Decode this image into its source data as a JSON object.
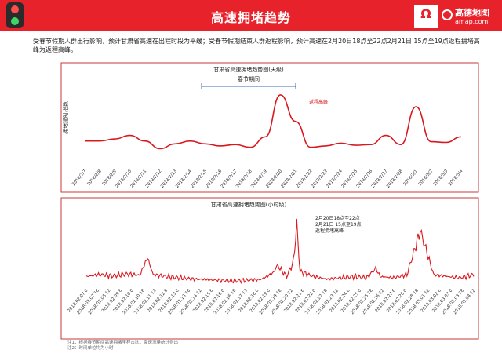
{
  "header": {
    "title": "高速拥堵趋势",
    "brand_name": "高德地图",
    "brand_url": "amap.com"
  },
  "summary": "受春节假期人群出行影响，预计甘肃省高速在出程时段为平缓；受春节假期结束人群返程影响，预计高速在2月20日18点至22点2月21日 15点至19点返程拥堵高峰为返程高峰。",
  "colors": {
    "accent": "#e8222a",
    "line": "#d9181e",
    "frame": "#c43a3a"
  },
  "chart_data": [
    {
      "type": "line",
      "title": "甘肃省高速拥堵趋势图(天级)",
      "ylabel": "拥堵延时指数",
      "categories": [
        "2018/2/7",
        "2018/2/8",
        "2018/2/9",
        "2018/2/10",
        "2018/2/11",
        "2018/2/12",
        "2018/2/13",
        "2018/2/14",
        "2018/2/15",
        "2018/2/16",
        "2018/2/17",
        "2018/2/18",
        "2018/2/19",
        "2018/2/20",
        "2018/2/21",
        "2018/2/22",
        "2018/2/23",
        "2018/2/24",
        "2018/2/25",
        "2018/2/26",
        "2018/2/27",
        "2018/2/28",
        "2018/3/1",
        "2018/3/2",
        "2018/3/3",
        "2018/3/4"
      ],
      "values": [
        0.34,
        0.34,
        0.37,
        0.42,
        0.34,
        0.23,
        0.3,
        0.34,
        0.3,
        0.27,
        0.29,
        0.25,
        0.4,
        1.0,
        0.62,
        0.25,
        0.27,
        0.31,
        0.28,
        0.29,
        0.42,
        0.29,
        0.83,
        0.33,
        0.32,
        0.4
      ],
      "ylim": [
        0,
        1.1
      ],
      "grid": false,
      "annotations": {
        "peak_label": "返程高峰",
        "holiday_label": "春节期间",
        "holiday_range": [
          "2018/2/15",
          "2018/2/21"
        ]
      }
    },
    {
      "type": "line",
      "title": "甘肃省高速拥堵趋势图(小时级)",
      "x_tick_labels": [
        "2018.02.07 0",
        "2018.02.07 18",
        "2018.02.08 12",
        "2018.02.09 6",
        "2018.02.10 0",
        "2018.02.10 18",
        "2018.02.11 12",
        "2018.02.12 6",
        "2018.02.13 0",
        "2018.02.13 18",
        "2018.02.14 12",
        "2018.02.15 6",
        "2018.02.16 0",
        "2018.02.16 18",
        "2018.02.17 12",
        "2018.02.18 6",
        "2018.02.19 0",
        "2018.02.19 18",
        "2018.02.20 12",
        "2018.02.21 6",
        "2018.02.22 0",
        "2018.02.22 18",
        "2018.02.23 12",
        "2018.02.24 6",
        "2018.02.25 0",
        "2018.02.25 18",
        "2018.02.26 12",
        "2018.02.27 6",
        "2018.02.28 0",
        "2018.02.28 18",
        "2018.03.01 12",
        "2018.03.02 6",
        "2018.03.03 0",
        "2018.03.03 18",
        "2018.03.04 12"
      ],
      "x": [
        0,
        24,
        48,
        72,
        96,
        110,
        120,
        144,
        168,
        192,
        216,
        240,
        264,
        288,
        312,
        320,
        336,
        343,
        360,
        372,
        378,
        384,
        408,
        432,
        456,
        480,
        504,
        520,
        528,
        552,
        576,
        600,
        624,
        648,
        672,
        696
      ],
      "values": [
        0.12,
        0.15,
        0.13,
        0.16,
        0.14,
        0.42,
        0.15,
        0.12,
        0.1,
        0.08,
        0.07,
        0.06,
        0.05,
        0.06,
        0.07,
        0.1,
        0.18,
        0.3,
        0.12,
        0.35,
        0.95,
        0.2,
        0.12,
        0.08,
        0.1,
        0.12,
        0.1,
        0.25,
        0.12,
        0.1,
        0.15,
        0.85,
        0.15,
        0.12,
        0.1,
        0.15
      ],
      "ylim": [
        0,
        1.1
      ],
      "grid": false,
      "annotations": {
        "peak_label_1": "2月20日18点至22点",
        "peak_label_2": "2月21日 15点至19点",
        "peak_label_3": "返程拥堵高峰"
      }
    }
  ],
  "notes": [
    "注1：根据春节期间高速拥堵里程占比，高速流量统计得出",
    "注2：时间单位均为小时"
  ]
}
